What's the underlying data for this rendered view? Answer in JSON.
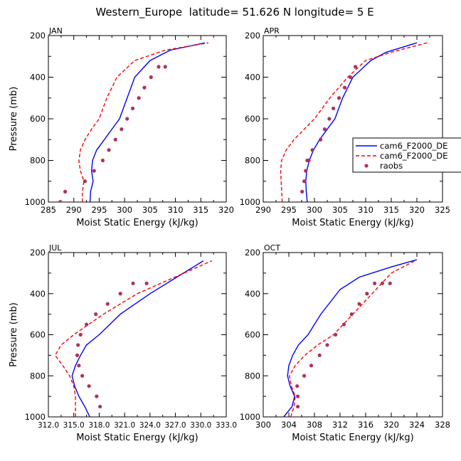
{
  "figure_title": "Western_Europe  latitude= 51.626 N longitude= 5 E",
  "colors": {
    "model1": "#0000ff",
    "model2": "#ff0000",
    "raobs": "#b0305c"
  },
  "legend": {
    "entries": [
      "cam6_F2000_DE",
      "cam6_F2000_DE",
      "raobs"
    ],
    "placement": "right of APR panel"
  },
  "chart_data": [
    {
      "type": "line",
      "title": "JAN",
      "xlabel": "Moist Static Energy (kJ/kg)",
      "ylabel": "Pressure (mb)",
      "xlim": [
        285,
        320
      ],
      "ylim": [
        200,
        1000
      ],
      "y_inverted": true,
      "xticks": [
        285,
        290,
        295,
        300,
        305,
        310,
        315,
        320
      ],
      "xtick_labels": [
        "285",
        "290",
        "295",
        "300",
        "305",
        "310",
        "315",
        "320"
      ],
      "yticks": [
        200,
        400,
        600,
        800,
        1000
      ],
      "ytick_labels": [
        "200",
        "400",
        "600",
        "800",
        "1000"
      ],
      "series": [
        {
          "name": "cam6_F2000_DE",
          "style": "solid",
          "color": "#0000ff",
          "x": [
            293.2,
            293.3,
            293.8,
            293.5,
            293.7,
            294.5,
            296,
            297.5,
            299,
            300.5,
            302,
            305,
            309,
            315.8
          ],
          "y": [
            1000,
            950,
            900,
            850,
            800,
            750,
            700,
            650,
            600,
            500,
            400,
            320,
            270,
            235
          ]
        },
        {
          "name": "cam6_F2000_DE",
          "style": "dashed",
          "color": "#ff0000",
          "x": [
            291.7,
            291.7,
            292,
            291.3,
            291,
            291.3,
            292.2,
            293.5,
            295,
            296.5,
            298.5,
            302,
            308,
            316.5
          ],
          "y": [
            1000,
            950,
            900,
            850,
            800,
            750,
            700,
            650,
            600,
            500,
            400,
            320,
            270,
            235
          ]
        },
        {
          "name": "raobs",
          "style": "points",
          "color": "#b0305c",
          "x": [
            287.3,
            288.3,
            292.2,
            294,
            295.7,
            296.9,
            298.2,
            299.4,
            300.5,
            301.6,
            302.8,
            303.9,
            305.2,
            306.7,
            308
          ],
          "y": [
            1000,
            950,
            900,
            850,
            800,
            750,
            700,
            650,
            600,
            550,
            500,
            450,
            400,
            350,
            350
          ]
        }
      ]
    },
    {
      "type": "line",
      "title": "APR",
      "xlabel": "Moist Static Energy (kJ/kg)",
      "ylabel": "",
      "xlim": [
        290,
        325
      ],
      "ylim": [
        200,
        1000
      ],
      "y_inverted": true,
      "xticks": [
        290,
        295,
        300,
        305,
        310,
        315,
        320,
        325
      ],
      "xtick_labels": [
        "290",
        "295",
        "300",
        "305",
        "310",
        "315",
        "320",
        "325"
      ],
      "yticks": [
        200,
        400,
        600,
        800,
        1000
      ],
      "ytick_labels": [
        "200",
        "400",
        "600",
        "800",
        "1000"
      ],
      "series": [
        {
          "name": "cam6_F2000_DE",
          "style": "solid",
          "color": "#0000ff",
          "x": [
            298.6,
            298.4,
            298.3,
            298.5,
            299,
            299.8,
            301,
            302.5,
            304,
            305.5,
            307.5,
            311,
            314,
            320
          ],
          "y": [
            1000,
            950,
            900,
            850,
            800,
            750,
            700,
            650,
            600,
            500,
            400,
            320,
            280,
            235
          ]
        },
        {
          "name": "cam6_F2000_DE",
          "style": "dashed",
          "color": "#ff0000",
          "x": [
            293.7,
            293.6,
            293.5,
            293.4,
            293.6,
            294.5,
            296,
            298,
            300,
            303,
            306.5,
            310,
            315,
            322
          ],
          "y": [
            1000,
            950,
            900,
            850,
            800,
            750,
            700,
            650,
            600,
            500,
            400,
            320,
            280,
            235
          ]
        },
        {
          "name": "raobs",
          "style": "points",
          "color": "#b0305c",
          "x": [
            297.6,
            298,
            298.3,
            298.6,
            298.9,
            299.6,
            301.2,
            302,
            302.9,
            303.7,
            304.8,
            305.9,
            307,
            308
          ],
          "y": [
            950,
            900,
            850,
            800,
            800,
            750,
            700,
            650,
            600,
            550,
            500,
            450,
            400,
            350
          ]
        }
      ]
    },
    {
      "type": "line",
      "title": "JUL",
      "xlabel": "Moist Static Energy (kJ/kg)",
      "ylabel": "Pressure (mb)",
      "xlim": [
        312,
        333
      ],
      "ylim": [
        200,
        1000
      ],
      "y_inverted": true,
      "xticks": [
        312,
        315,
        318,
        321,
        324,
        327,
        330,
        333
      ],
      "xtick_labels": [
        "312.0",
        "315.0",
        "318.0",
        "321.0",
        "324.0",
        "327.0",
        "330.0",
        "333.0"
      ],
      "yticks": [
        200,
        400,
        600,
        800,
        1000
      ],
      "ytick_labels": [
        "200",
        "400",
        "600",
        "800",
        "1000"
      ],
      "series": [
        {
          "name": "cam6_F2000_DE",
          "style": "solid",
          "color": "#0000ff",
          "x": [
            316.9,
            316.3,
            315.6,
            315.1,
            314.8,
            315.2,
            315.8,
            316.5,
            318,
            320.5,
            324,
            330.3
          ],
          "y": [
            1000,
            950,
            900,
            850,
            800,
            750,
            700,
            650,
            600,
            500,
            400,
            240
          ]
        },
        {
          "name": "cam6_F2000_DE",
          "style": "dashed",
          "color": "#ff0000",
          "x": [
            315.2,
            315.2,
            315.2,
            315,
            314.5,
            313.7,
            312.8,
            313.5,
            315,
            318.5,
            322.5,
            331.3
          ],
          "y": [
            1000,
            950,
            900,
            850,
            800,
            750,
            700,
            650,
            600,
            500,
            400,
            240
          ]
        },
        {
          "name": "raobs",
          "style": "points",
          "color": "#b0305c",
          "x": [
            318.1,
            317.7,
            316.8,
            316,
            315.6,
            315.4,
            315.5,
            315.8,
            316.5,
            317.6,
            319,
            320.5,
            322,
            323.6
          ],
          "y": [
            950,
            900,
            850,
            800,
            750,
            700,
            650,
            600,
            550,
            500,
            450,
            400,
            350,
            350
          ]
        }
      ]
    },
    {
      "type": "line",
      "title": "OCT",
      "xlabel": "Moist Static Energy (kJ/kg)",
      "ylabel": "",
      "xlim": [
        300,
        328
      ],
      "ylim": [
        200,
        1000
      ],
      "y_inverted": true,
      "xticks": [
        300,
        304,
        308,
        312,
        316,
        320,
        324,
        328
      ],
      "xtick_labels": [
        "300",
        "304",
        "308",
        "312",
        "316",
        "320",
        "324",
        "328"
      ],
      "yticks": [
        200,
        400,
        600,
        800,
        1000
      ],
      "ytick_labels": [
        "200",
        "400",
        "600",
        "800",
        "1000"
      ],
      "series": [
        {
          "name": "cam6_F2000_DE",
          "style": "solid",
          "color": "#0000ff",
          "x": [
            303.2,
            304.5,
            304.9,
            304.2,
            303.8,
            304,
            304.6,
            305.5,
            307,
            309,
            312,
            315,
            320,
            324
          ],
          "y": [
            1000,
            950,
            900,
            850,
            800,
            750,
            700,
            650,
            600,
            500,
            380,
            320,
            270,
            235
          ]
        },
        {
          "name": "cam6_F2000_DE",
          "style": "dashed",
          "color": "#ff0000",
          "x": [
            304.3,
            304.8,
            305,
            304.4,
            304.1,
            305,
            306.5,
            308.5,
            311,
            314,
            317,
            320,
            324
          ],
          "y": [
            1000,
            950,
            900,
            850,
            800,
            750,
            700,
            650,
            600,
            500,
            400,
            300,
            235
          ]
        },
        {
          "name": "raobs",
          "style": "points",
          "color": "#b0305c",
          "x": [
            305.4,
            305.4,
            305.3,
            306.4,
            307.5,
            308.8,
            310,
            311.3,
            312.6,
            313.8,
            315,
            316.2,
            317.4,
            318.6,
            319.8
          ],
          "y": [
            950,
            900,
            850,
            800,
            750,
            700,
            650,
            600,
            550,
            500,
            450,
            400,
            350,
            350,
            350
          ]
        }
      ]
    }
  ]
}
